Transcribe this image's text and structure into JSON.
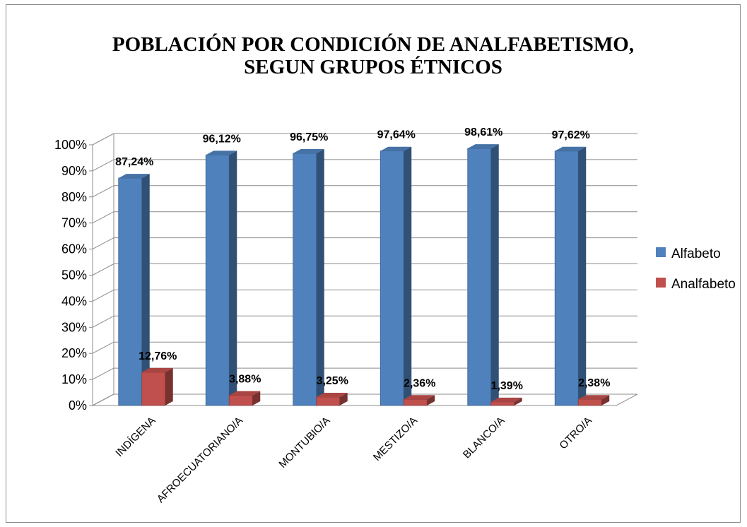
{
  "chart_data": {
    "type": "bar",
    "title_lines": [
      "POBLACIÓN POR CONDICIÓN DE ANALFABETISMO,",
      "SEGUN GRUPOS ÉTNICOS"
    ],
    "categories": [
      "INDÍGENA",
      "AFROECUATORIANO/A",
      "MONTUBIO/A",
      "MESTIZO/A",
      "BLANCO/A",
      "OTRO/A"
    ],
    "series": [
      {
        "name": "Alfabeto",
        "color": "#4f81bd",
        "values": [
          87.24,
          96.12,
          96.75,
          97.64,
          98.61,
          97.62
        ],
        "labels": [
          "87,24%",
          "96,12%",
          "96,75%",
          "97,64%",
          "98,61%",
          "97,62%"
        ]
      },
      {
        "name": "Analfabeto",
        "color": "#c0504d",
        "values": [
          12.76,
          3.88,
          3.25,
          2.36,
          1.39,
          2.38
        ],
        "labels": [
          "12,76%",
          "3,88%",
          "3,25%",
          "2,36%",
          "1,39%",
          "2,38%"
        ]
      }
    ],
    "y_ticks": [
      "0%",
      "10%",
      "20%",
      "30%",
      "40%",
      "50%",
      "60%",
      "70%",
      "80%",
      "90%",
      "100%"
    ],
    "ylim": [
      0,
      100
    ],
    "grid": true,
    "legend_position": "right",
    "style": "3d-clustered-column"
  }
}
